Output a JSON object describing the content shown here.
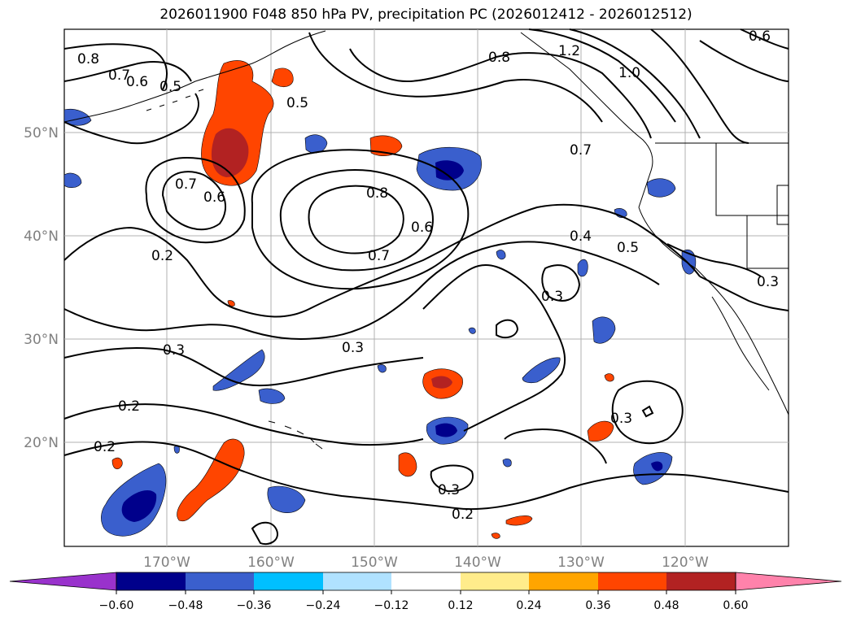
{
  "title": "2026011900 F048 850 hPa PV, precipitation PC (2026012412 - 2026012512)",
  "map": {
    "lon_labels": [
      "170°W",
      "160°W",
      "150°W",
      "140°W",
      "130°W",
      "120°W"
    ],
    "lat_labels": [
      "50°N",
      "40°N",
      "30°N",
      "20°N"
    ],
    "contour_labels": [
      "0.8",
      "0.7",
      "0.6",
      "0.5",
      "0.5",
      "0.8",
      "1.2",
      "1.0",
      "0.6",
      "0.7",
      "0.6",
      "0.7",
      "0.8",
      "0.6",
      "0.7",
      "0.4",
      "0.5",
      "0.2",
      "0.3",
      "0.3",
      "0.3",
      "0.3",
      "0.2",
      "0.2",
      "0.3",
      "0.3",
      "0.2"
    ]
  },
  "colorbar": {
    "ticks": [
      "−0.60",
      "−0.48",
      "−0.36",
      "−0.24",
      "−0.12",
      "0.12",
      "0.24",
      "0.36",
      "0.48",
      "0.60"
    ],
    "colors": [
      "#9932cc",
      "#00008b",
      "#3a5fcd",
      "#00bfff",
      "#b0e2ff",
      "#ffffff",
      "#ffec8b",
      "#ffa500",
      "#ff4500",
      "#b22222",
      "#ff82ab"
    ]
  }
}
